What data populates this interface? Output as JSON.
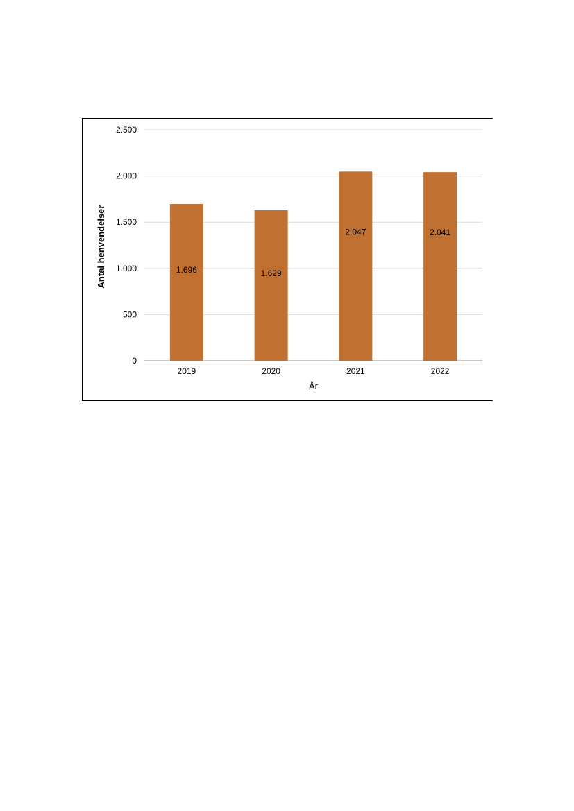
{
  "chart_data": {
    "type": "bar",
    "categories": [
      "2019",
      "2020",
      "2021",
      "2022"
    ],
    "values": [
      1696,
      1629,
      2047,
      2041
    ],
    "data_labels": [
      "1.696",
      "1.629",
      "2.047",
      "2.041"
    ],
    "title": "",
    "xlabel": "År",
    "ylabel": "Antal henvendelser",
    "ylim": [
      0,
      2500
    ],
    "yticks": [
      0,
      500,
      1000,
      1500,
      2000,
      2500
    ],
    "ytick_labels": [
      "0",
      "500",
      "1.000",
      "1.500",
      "2.000",
      "2.500"
    ],
    "grid": true,
    "legend": "none",
    "bar_color": "#C07030",
    "grid_color": "#bfbfbf"
  }
}
